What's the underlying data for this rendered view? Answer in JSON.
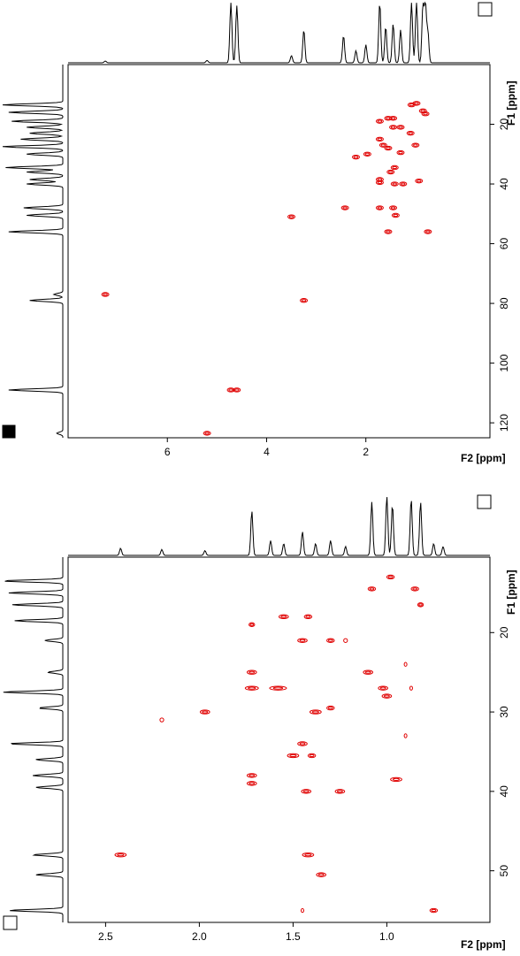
{
  "chart_data": [
    {
      "type": "heatmap",
      "subtype": "2d-nmr-contour",
      "xlabel": "F2 [ppm]",
      "ylabel": "F1 [ppm]",
      "xlim": [
        8.0,
        -0.5
      ],
      "ylim": [
        0,
        125
      ],
      "x_ticks": [
        {
          "value": 6,
          "label": "6"
        },
        {
          "value": 4,
          "label": "4"
        },
        {
          "value": 2,
          "label": "2"
        }
      ],
      "y_ticks": [
        {
          "value": 20,
          "label": "20"
        },
        {
          "value": 40,
          "label": "40"
        },
        {
          "value": 60,
          "label": "60"
        },
        {
          "value": 80,
          "label": "80"
        },
        {
          "value": 100,
          "label": "100"
        },
        {
          "value": 120,
          "label": "120"
        }
      ],
      "contour_color": "#e00000",
      "peaks": [
        {
          "x": 1.08,
          "y": 13.5
        },
        {
          "x": 0.98,
          "y": 13.0
        },
        {
          "x": 0.85,
          "y": 15.5
        },
        {
          "x": 0.8,
          "y": 16.5
        },
        {
          "x": 1.45,
          "y": 18.0
        },
        {
          "x": 1.55,
          "y": 18.0
        },
        {
          "x": 1.72,
          "y": 19.0
        },
        {
          "x": 1.3,
          "y": 21.0
        },
        {
          "x": 1.45,
          "y": 21.0
        },
        {
          "x": 1.1,
          "y": 23.0
        },
        {
          "x": 1.72,
          "y": 25.0
        },
        {
          "x": 1.65,
          "y": 27.0
        },
        {
          "x": 1.0,
          "y": 27.0
        },
        {
          "x": 1.55,
          "y": 28.0
        },
        {
          "x": 1.3,
          "y": 29.5
        },
        {
          "x": 2.2,
          "y": 31.0
        },
        {
          "x": 1.97,
          "y": 30.0
        },
        {
          "x": 1.42,
          "y": 34.5
        },
        {
          "x": 1.5,
          "y": 36.0
        },
        {
          "x": 1.72,
          "y": 38.5
        },
        {
          "x": 1.72,
          "y": 39.5
        },
        {
          "x": 1.42,
          "y": 40.0
        },
        {
          "x": 1.25,
          "y": 40.0
        },
        {
          "x": 0.93,
          "y": 39.0
        },
        {
          "x": 1.45,
          "y": 48.0
        },
        {
          "x": 1.72,
          "y": 48.0
        },
        {
          "x": 2.42,
          "y": 48.0
        },
        {
          "x": 1.4,
          "y": 50.5
        },
        {
          "x": 1.55,
          "y": 56.0
        },
        {
          "x": 0.75,
          "y": 56.0
        },
        {
          "x": 3.5,
          "y": 51.0
        },
        {
          "x": 3.25,
          "y": 79.0
        },
        {
          "x": 7.25,
          "y": 77.0
        },
        {
          "x": 4.72,
          "y": 109.0
        },
        {
          "x": 4.6,
          "y": 109.0
        },
        {
          "x": 5.2,
          "y": 123.5
        }
      ],
      "f2_projection_peaks": [
        {
          "x": 4.72,
          "h": 1.0
        },
        {
          "x": 4.6,
          "h": 0.95
        },
        {
          "x": 3.25,
          "h": 0.55
        },
        {
          "x": 2.45,
          "h": 0.45
        },
        {
          "x": 2.2,
          "h": 0.2
        },
        {
          "x": 2.0,
          "h": 0.3
        },
        {
          "x": 1.72,
          "h": 1.0
        },
        {
          "x": 1.6,
          "h": 0.6
        },
        {
          "x": 1.45,
          "h": 0.65
        },
        {
          "x": 1.3,
          "h": 0.55
        },
        {
          "x": 1.08,
          "h": 1.0
        },
        {
          "x": 0.98,
          "h": 1.0
        },
        {
          "x": 0.85,
          "h": 0.95
        },
        {
          "x": 0.8,
          "h": 0.95
        },
        {
          "x": 0.75,
          "h": 0.5
        },
        {
          "x": 5.2,
          "h": 0.04
        },
        {
          "x": 7.25,
          "h": 0.03
        },
        {
          "x": 3.5,
          "h": 0.12
        }
      ],
      "f1_projection_peaks": [
        {
          "y": 13.5,
          "h": 1.0
        },
        {
          "y": 16.0,
          "h": 0.9
        },
        {
          "y": 19.0,
          "h": 0.85
        },
        {
          "y": 21.0,
          "h": 0.6
        },
        {
          "y": 23.0,
          "h": 0.55
        },
        {
          "y": 25.0,
          "h": 0.7
        },
        {
          "y": 27.5,
          "h": 1.0
        },
        {
          "y": 30.0,
          "h": 0.6
        },
        {
          "y": 34.5,
          "h": 0.95
        },
        {
          "y": 36.0,
          "h": 0.6
        },
        {
          "y": 38.5,
          "h": 0.55
        },
        {
          "y": 40.0,
          "h": 0.6
        },
        {
          "y": 48.0,
          "h": 0.65
        },
        {
          "y": 50.5,
          "h": 0.6
        },
        {
          "y": 56.0,
          "h": 0.9
        },
        {
          "y": 77.0,
          "h": 0.15
        },
        {
          "y": 79.0,
          "h": 0.55
        },
        {
          "y": 109.0,
          "h": 0.9
        },
        {
          "y": 123.5,
          "h": 0.1
        }
      ]
    },
    {
      "type": "heatmap",
      "subtype": "2d-nmr-contour",
      "xlabel": "F2 [ppm]",
      "ylabel": "F1 [ppm]",
      "xlim": [
        2.7,
        0.45
      ],
      "ylim": [
        10.5,
        56.5
      ],
      "x_ticks": [
        {
          "value": 2.5,
          "label": "2.5"
        },
        {
          "value": 2.0,
          "label": "2.0"
        },
        {
          "value": 1.5,
          "label": "1.5"
        },
        {
          "value": 1.0,
          "label": "1.0"
        }
      ],
      "y_ticks": [
        {
          "value": 20,
          "label": "20"
        },
        {
          "value": 30,
          "label": "30"
        },
        {
          "value": 40,
          "label": "40"
        },
        {
          "value": 50,
          "label": "50"
        }
      ],
      "contour_color": "#e00000",
      "peaks": [
        {
          "x": 0.98,
          "y": 13.0,
          "w": 0.04
        },
        {
          "x": 1.08,
          "y": 14.5,
          "w": 0.04
        },
        {
          "x": 0.85,
          "y": 14.5,
          "w": 0.04
        },
        {
          "x": 0.82,
          "y": 16.5,
          "w": 0.03
        },
        {
          "x": 1.55,
          "y": 18.0,
          "w": 0.05
        },
        {
          "x": 1.42,
          "y": 18.0,
          "w": 0.04
        },
        {
          "x": 1.72,
          "y": 19.0,
          "w": 0.03
        },
        {
          "x": 1.45,
          "y": 21.0,
          "w": 0.05
        },
        {
          "x": 1.3,
          "y": 21.0,
          "w": 0.04
        },
        {
          "x": 1.22,
          "y": 21.0,
          "w": 0.02
        },
        {
          "x": 1.1,
          "y": 25.0,
          "w": 0.05
        },
        {
          "x": 1.72,
          "y": 25.0,
          "w": 0.05
        },
        {
          "x": 1.72,
          "y": 27.0,
          "w": 0.07
        },
        {
          "x": 1.58,
          "y": 27.0,
          "w": 0.09
        },
        {
          "x": 1.02,
          "y": 27.0,
          "w": 0.05
        },
        {
          "x": 1.0,
          "y": 28.0,
          "w": 0.05
        },
        {
          "x": 2.2,
          "y": 31.0,
          "w": 0.02
        },
        {
          "x": 1.97,
          "y": 30.0,
          "w": 0.05
        },
        {
          "x": 1.38,
          "y": 30.0,
          "w": 0.06
        },
        {
          "x": 1.3,
          "y": 29.5,
          "w": 0.04
        },
        {
          "x": 1.45,
          "y": 34.0,
          "w": 0.05
        },
        {
          "x": 1.5,
          "y": 35.5,
          "w": 0.06
        },
        {
          "x": 1.4,
          "y": 35.5,
          "w": 0.04
        },
        {
          "x": 1.72,
          "y": 38.0,
          "w": 0.05
        },
        {
          "x": 1.72,
          "y": 39.0,
          "w": 0.05
        },
        {
          "x": 1.43,
          "y": 40.0,
          "w": 0.05
        },
        {
          "x": 1.25,
          "y": 40.0,
          "w": 0.05
        },
        {
          "x": 0.95,
          "y": 38.5,
          "w": 0.06
        },
        {
          "x": 2.42,
          "y": 48.0,
          "w": 0.06
        },
        {
          "x": 1.42,
          "y": 48.0,
          "w": 0.06
        },
        {
          "x": 1.35,
          "y": 50.5,
          "w": 0.05
        },
        {
          "x": 0.75,
          "y": 55.0,
          "w": 0.04
        },
        {
          "x": 1.45,
          "y": 55.0,
          "w": 0.01
        },
        {
          "x": 0.9,
          "y": 24.0,
          "w": 0.01
        },
        {
          "x": 0.87,
          "y": 27.0,
          "w": 0.01
        },
        {
          "x": 0.9,
          "y": 33.0,
          "w": 0.01
        }
      ],
      "f2_projection_peaks": [
        {
          "x": 2.42,
          "h": 0.12
        },
        {
          "x": 2.2,
          "h": 0.1
        },
        {
          "x": 1.97,
          "h": 0.08
        },
        {
          "x": 1.72,
          "h": 0.75
        },
        {
          "x": 1.62,
          "h": 0.25
        },
        {
          "x": 1.55,
          "h": 0.2
        },
        {
          "x": 1.45,
          "h": 0.4
        },
        {
          "x": 1.38,
          "h": 0.2
        },
        {
          "x": 1.3,
          "h": 0.25
        },
        {
          "x": 1.22,
          "h": 0.15
        },
        {
          "x": 1.08,
          "h": 0.9
        },
        {
          "x": 1.0,
          "h": 1.0
        },
        {
          "x": 0.97,
          "h": 0.85
        },
        {
          "x": 0.87,
          "h": 0.95
        },
        {
          "x": 0.82,
          "h": 0.9
        },
        {
          "x": 0.75,
          "h": 0.2
        },
        {
          "x": 0.7,
          "h": 0.15
        }
      ],
      "f1_projection_peaks": [
        {
          "y": 13.5,
          "h": 1.0
        },
        {
          "y": 15.0,
          "h": 0.9
        },
        {
          "y": 16.5,
          "h": 0.85
        },
        {
          "y": 18.5,
          "h": 0.8
        },
        {
          "y": 21.0,
          "h": 0.3
        },
        {
          "y": 25.0,
          "h": 0.25
        },
        {
          "y": 27.5,
          "h": 1.0
        },
        {
          "y": 29.5,
          "h": 0.4
        },
        {
          "y": 34.0,
          "h": 0.9
        },
        {
          "y": 36.0,
          "h": 0.45
        },
        {
          "y": 38.0,
          "h": 0.5
        },
        {
          "y": 39.5,
          "h": 0.45
        },
        {
          "y": 48.0,
          "h": 0.5
        },
        {
          "y": 50.5,
          "h": 0.45
        },
        {
          "y": 55.0,
          "h": 0.9
        }
      ]
    }
  ]
}
